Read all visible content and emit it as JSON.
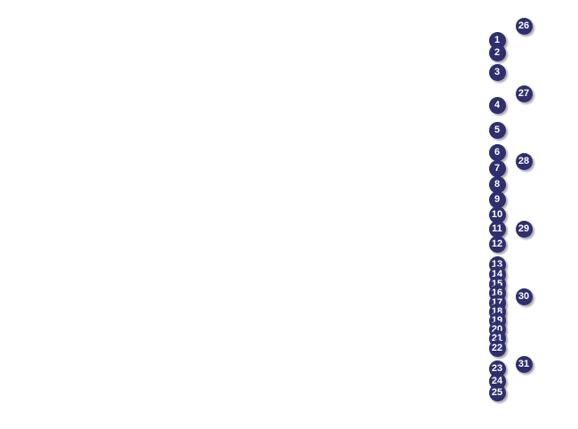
{
  "markers": {
    "left_column": [
      "1",
      "2",
      "3",
      "4",
      "5",
      "6",
      "7",
      "8",
      "9",
      "10",
      "11",
      "12",
      "13",
      "14",
      "15",
      "16",
      "17",
      "18",
      "19",
      "20",
      "21",
      "22",
      "23",
      "24",
      "25"
    ],
    "right_column": [
      "26",
      "27",
      "28",
      "29",
      "30",
      "31"
    ]
  },
  "colors": {
    "marker_fill": "#2f2e6e",
    "marker_text": "#ffffff"
  }
}
